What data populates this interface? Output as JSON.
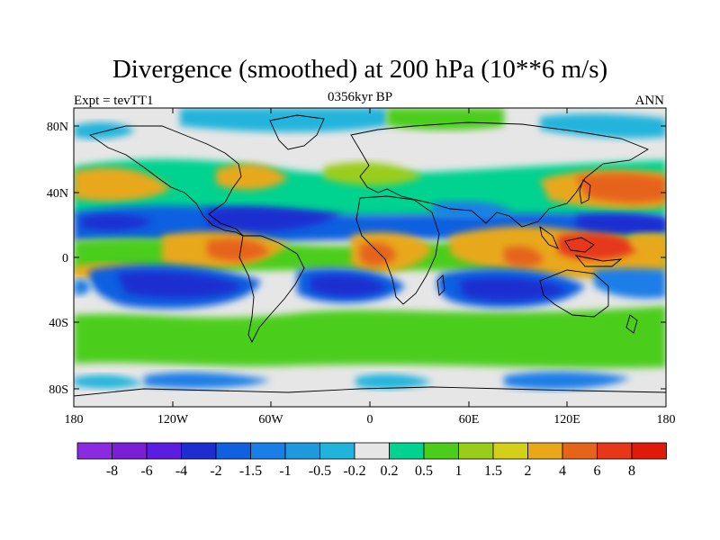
{
  "title": "Divergence (smoothed) at 200 hPa (10**6 m/s)",
  "subtitle_left": "Expt = tevTT1",
  "subtitle_center": "0356kyr BP",
  "subtitle_right": "ANN",
  "lat_ticks": [
    "80N",
    "40N",
    "0",
    "40S",
    "80S"
  ],
  "lon_ticks": [
    "180",
    "120W",
    "60W",
    "0",
    "60E",
    "120E",
    "180"
  ],
  "colorbar": {
    "colors": [
      "#8a2be2",
      "#7a1fd6",
      "#5b1ee0",
      "#1e2dd0",
      "#1060e0",
      "#1a7ee6",
      "#1e9adc",
      "#20b4dc",
      "#e6e6e6",
      "#00d290",
      "#4ccd1a",
      "#9acd1a",
      "#d4d01a",
      "#e8a81a",
      "#e6641a",
      "#e6371a",
      "#e01a0a"
    ],
    "labels": [
      "-8",
      "-6",
      "-4",
      "-2",
      "-1.5",
      "-1",
      "-0.5",
      "-0.2",
      "0.2",
      "0.5",
      "1",
      "1.5",
      "2",
      "4",
      "6",
      "8"
    ]
  },
  "colors": {
    "land_outline": "#000000",
    "background": "#e6e6e6"
  }
}
